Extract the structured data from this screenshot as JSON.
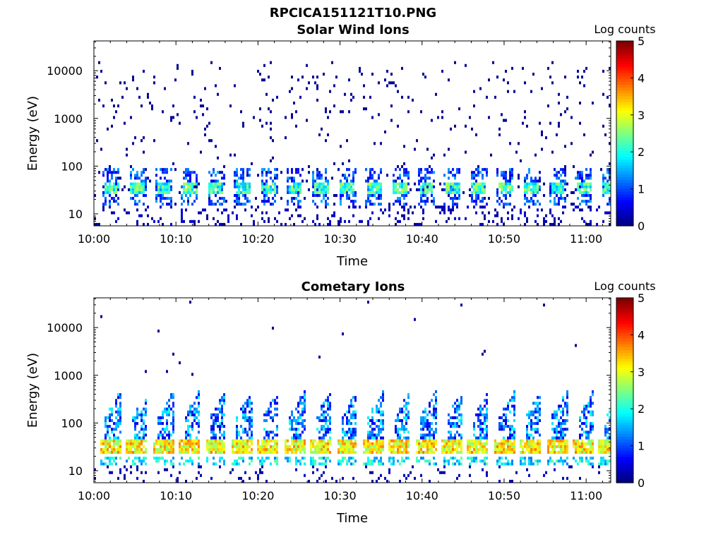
{
  "figure": {
    "title": "RPCICA151121T10.PNG"
  },
  "chart_data": [
    {
      "type": "heatmap",
      "title": "Solar Wind Ions",
      "xlabel": "Time",
      "ylabel": "Energy (eV)",
      "x_ticks": [
        "10:00",
        "10:10",
        "10:20",
        "10:30",
        "10:40",
        "10:50",
        "11:00"
      ],
      "y_ticks": [
        "10",
        "100",
        "1000",
        "10000"
      ],
      "y_scale": "log",
      "ylim": [
        5.6,
        42000
      ],
      "xlim_minutes": [
        0,
        63
      ],
      "colorbar": {
        "label": "Log counts",
        "ticks": [
          "0",
          "1",
          "2",
          "3",
          "4",
          "5"
        ],
        "range": [
          0,
          5
        ],
        "colormap": "jet"
      },
      "sweep_period_min": 3.2,
      "core_band_eV": [
        26,
        45
      ],
      "core_log_counts_range": [
        1.5,
        2.8
      ],
      "background_max_eV": 15000,
      "background_log_counts": 0.1
    },
    {
      "type": "heatmap",
      "title": "Cometary Ions",
      "xlabel": "Time",
      "ylabel": "Energy (eV)",
      "x_ticks": [
        "10:00",
        "10:10",
        "10:20",
        "10:30",
        "10:40",
        "10:50",
        "11:00"
      ],
      "y_ticks": [
        "10",
        "100",
        "1000",
        "10000"
      ],
      "y_scale": "log",
      "ylim": [
        5.6,
        42000
      ],
      "xlim_minutes": [
        0,
        63
      ],
      "colorbar": {
        "label": "Log counts",
        "ticks": [
          "0",
          "1",
          "2",
          "3",
          "4",
          "5"
        ],
        "range": [
          0,
          5
        ],
        "colormap": "jet"
      },
      "sweep_period_min": 3.2,
      "core_band_eV": [
        22,
        45
      ],
      "core_log_counts_range": [
        2.5,
        3.8
      ],
      "plume_max_eV": 500
    }
  ]
}
